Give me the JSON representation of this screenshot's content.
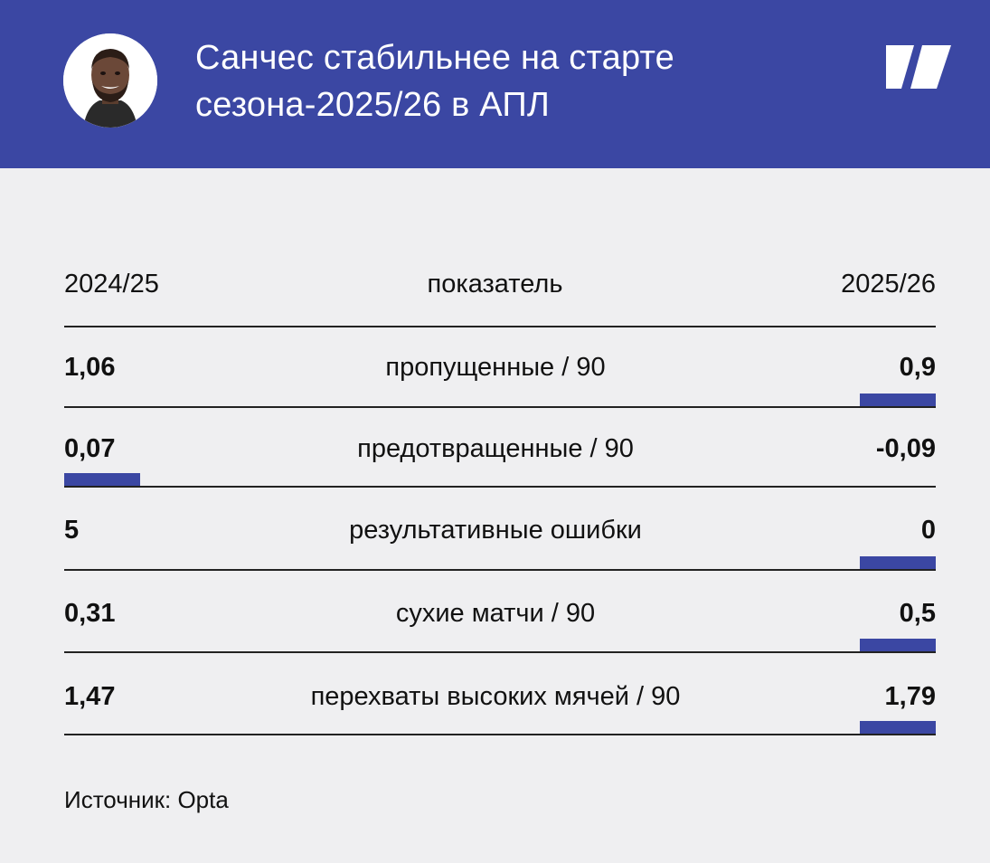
{
  "header": {
    "title_line1": "Санчес стабильнее на старте",
    "title_line2": "сезона-2025/26 в АПЛ",
    "background_color": "#3b47a3",
    "logo_icon": "brand-logo-icon",
    "avatar_icon": "player-avatar-icon"
  },
  "chart_data": {
    "type": "table",
    "columns": {
      "left": "2024/25",
      "middle": "показатель",
      "right": "2025/26"
    },
    "highlight_color": "#3b47a3",
    "rows": [
      {
        "metric": "пропущенные / 90",
        "left": "1,06",
        "right": "0,9",
        "highlight": "right"
      },
      {
        "metric": "предотвращенные / 90",
        "left": "0,07",
        "right": "-0,09",
        "highlight": "left"
      },
      {
        "metric": "результативные ошибки",
        "left": "5",
        "right": "0",
        "highlight": "right"
      },
      {
        "metric": "сухие матчи / 90",
        "left": "0,31",
        "right": "0,5",
        "highlight": "right"
      },
      {
        "metric": "перехваты высоких мячей / 90",
        "left": "1,47",
        "right": "1,79",
        "highlight": "right"
      }
    ]
  },
  "footer": {
    "source": "Источник: Opta"
  }
}
